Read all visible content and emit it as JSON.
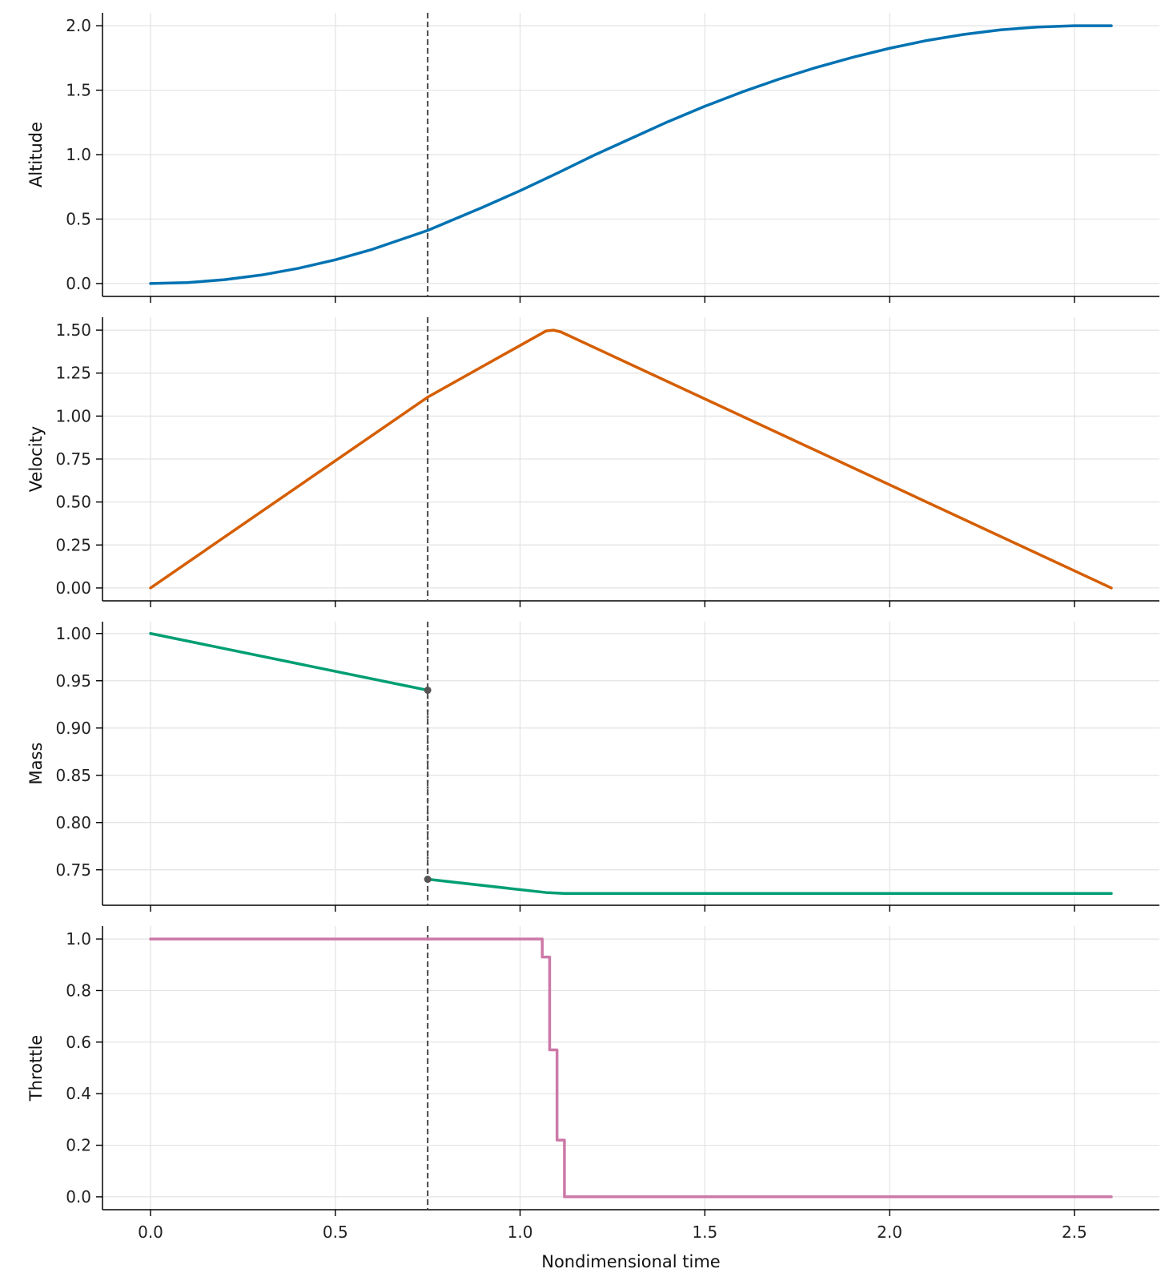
{
  "chart_data": {
    "type": "line",
    "shared_x": true,
    "xlabel": "Nondimensional time",
    "xticks": [
      0.0,
      0.5,
      1.0,
      1.5,
      2.0,
      2.5
    ],
    "xtick_labels": [
      "0.0",
      "0.5",
      "1.0",
      "1.5",
      "2.0",
      "2.5"
    ],
    "xlim": [
      -0.13,
      2.73
    ],
    "grid": true,
    "phase_boundary_x": 0.75,
    "panels": [
      {
        "ylabel": "Altitude",
        "color": "#0072B2",
        "ylim": [
          -0.1,
          2.1
        ],
        "yticks": [
          0.0,
          0.5,
          1.0,
          1.5,
          2.0
        ],
        "ytick_labels": [
          "0.0",
          "0.5",
          "1.0",
          "1.5",
          "2.0"
        ],
        "series": [
          {
            "x": [
              0.0,
              0.1,
              0.2,
              0.3,
              0.4,
              0.5,
              0.6,
              0.75,
              0.9,
              1.0,
              1.1,
              1.2,
              1.3,
              1.4,
              1.5,
              1.6,
              1.7,
              1.8,
              1.9,
              2.0,
              2.1,
              2.2,
              2.3,
              2.4,
              2.5,
              2.6
            ],
            "y": [
              0.0,
              0.007,
              0.03,
              0.066,
              0.118,
              0.184,
              0.265,
              0.412,
              0.593,
              0.72,
              0.855,
              0.995,
              1.125,
              1.255,
              1.375,
              1.485,
              1.585,
              1.675,
              1.755,
              1.825,
              1.885,
              1.932,
              1.968,
              1.99,
              2.0,
              2.0
            ]
          }
        ]
      },
      {
        "ylabel": "Velocity",
        "color": "#D55E00",
        "ylim": [
          -0.075,
          1.575
        ],
        "yticks": [
          0.0,
          0.25,
          0.5,
          0.75,
          1.0,
          1.25,
          1.5
        ],
        "ytick_labels": [
          "0.00",
          "0.25",
          "0.50",
          "0.75",
          "1.00",
          "1.25",
          "1.50"
        ],
        "series": [
          {
            "x": [
              0.0,
              0.75,
              1.07,
              1.09,
              1.11,
              2.6
            ],
            "y": [
              0.0,
              1.11,
              1.495,
              1.5,
              1.49,
              0.0
            ]
          }
        ]
      },
      {
        "ylabel": "Mass",
        "color": "#009E73",
        "ylim": [
          0.7125,
          1.0125
        ],
        "yticks": [
          0.75,
          0.8,
          0.85,
          0.9,
          0.95,
          1.0
        ],
        "ytick_labels": [
          "0.75",
          "0.80",
          "0.85",
          "0.90",
          "0.95",
          "1.00"
        ],
        "series": [
          {
            "x": [
              0.0,
              0.75
            ],
            "y": [
              1.0,
              0.94
            ]
          },
          {
            "x": [
              0.75,
              1.07,
              1.12,
              2.6
            ],
            "y": [
              0.74,
              0.726,
              0.725,
              0.725
            ]
          }
        ],
        "jump": {
          "x": 0.75,
          "y_from": 0.94,
          "y_to": 0.74
        }
      },
      {
        "ylabel": "Throttle",
        "color": "#CC79A7",
        "ylim": [
          -0.05,
          1.05
        ],
        "yticks": [
          0.0,
          0.2,
          0.4,
          0.6,
          0.8,
          1.0
        ],
        "ytick_labels": [
          "0.0",
          "0.2",
          "0.4",
          "0.6",
          "0.8",
          "1.0"
        ],
        "step": true,
        "series": [
          {
            "x": [
              0.0,
              1.06,
              1.08,
              1.1,
              1.12,
              2.6
            ],
            "y": [
              1.0,
              0.93,
              0.57,
              0.22,
              0.0,
              0.0
            ]
          }
        ]
      }
    ]
  }
}
